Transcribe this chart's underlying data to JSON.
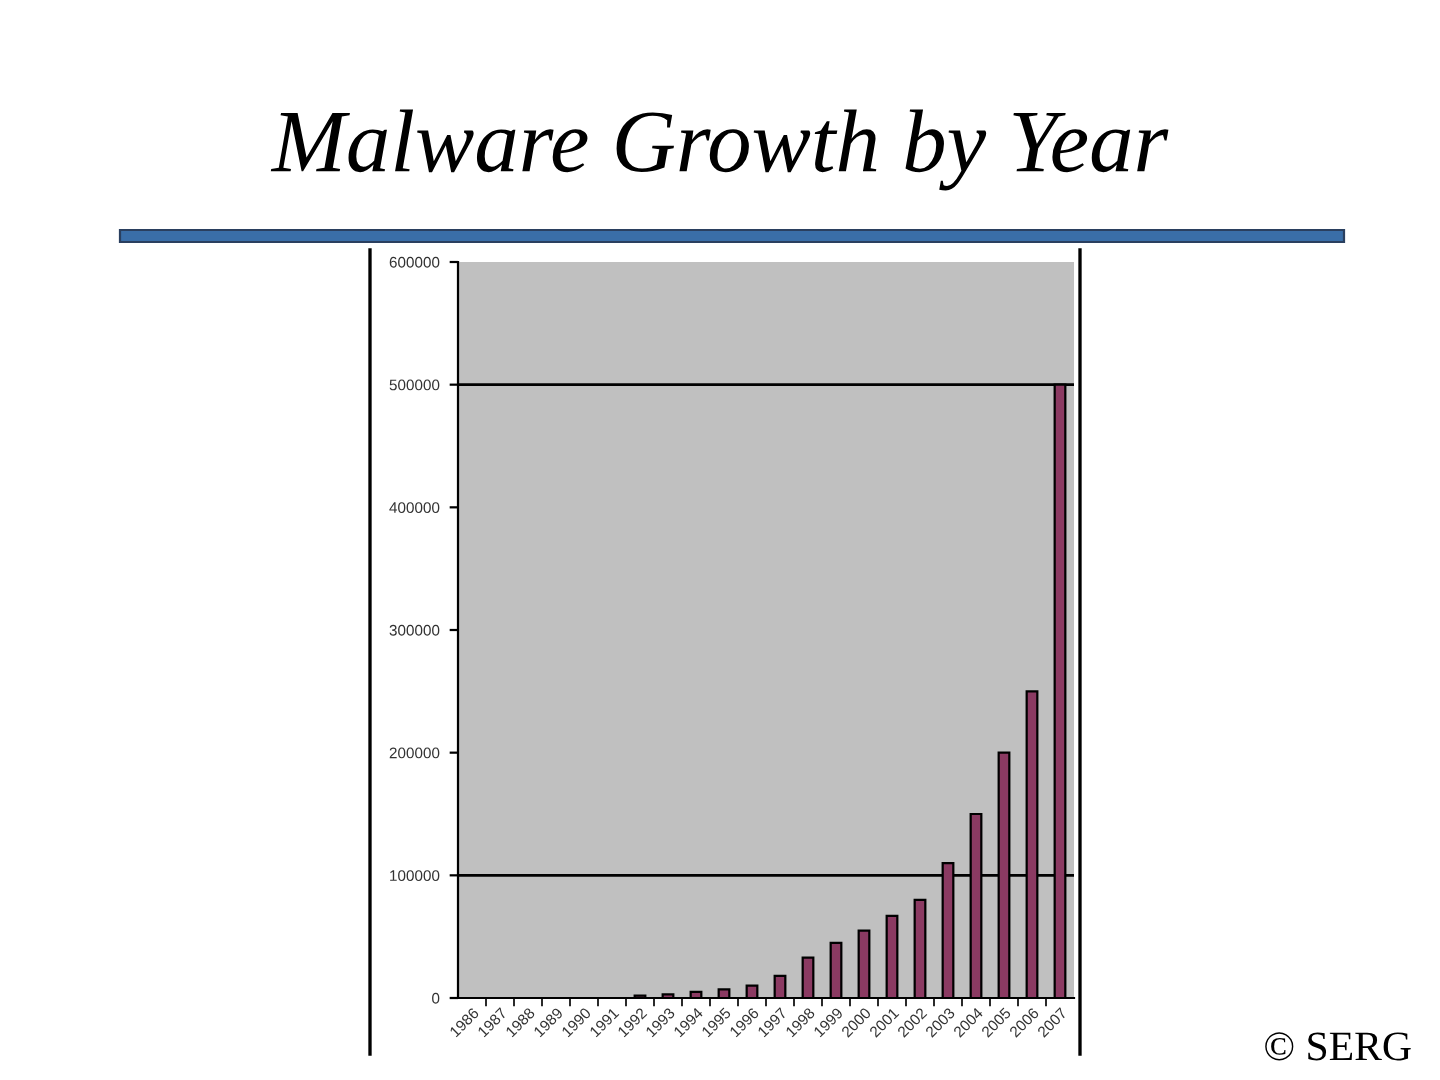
{
  "chart_data": {
    "type": "bar",
    "title": "Malware Growth by Year",
    "categories": [
      "1986",
      "1987",
      "1988",
      "1989",
      "1990",
      "1991",
      "1992",
      "1993",
      "1994",
      "1995",
      "1996",
      "1997",
      "1998",
      "1999",
      "2000",
      "2001",
      "2002",
      "2003",
      "2004",
      "2005",
      "2006",
      "2007"
    ],
    "values": [
      0,
      0,
      0,
      0,
      0,
      0,
      2000,
      3000,
      5000,
      7000,
      10000,
      18000,
      33000,
      45000,
      55000,
      67000,
      80000,
      110000,
      150000,
      200000,
      250000,
      500000
    ],
    "color": "#8b3a62",
    "ylim": [
      0,
      600000
    ],
    "yticks": [
      0,
      100000,
      200000,
      300000,
      400000,
      500000,
      600000
    ],
    "ref_lines": [
      {
        "axis": "y",
        "value": 100000,
        "color": "#000000"
      },
      {
        "axis": "y",
        "value": 500000,
        "color": "#000000"
      }
    ],
    "annotations": [
      "© SERG"
    ]
  }
}
